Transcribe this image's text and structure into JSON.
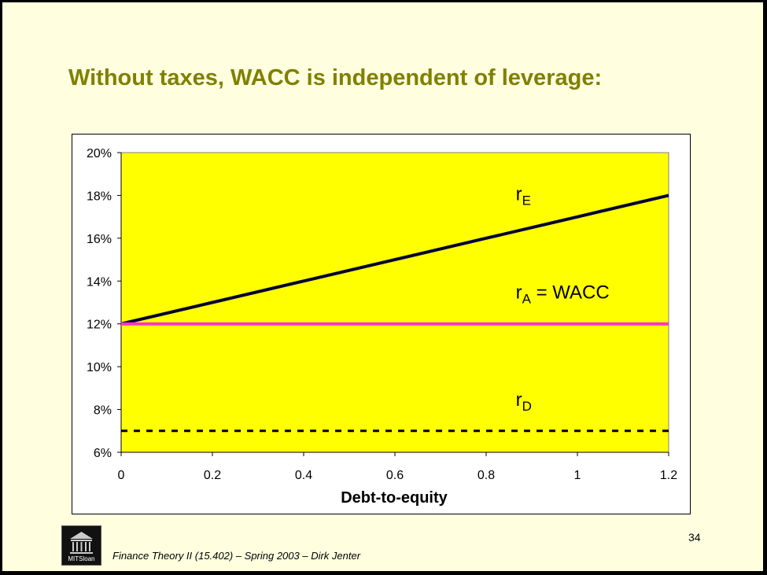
{
  "slide": {
    "title": "Without taxes, WACC is independent of leverage:",
    "page_number": "34",
    "footer": "Finance Theory II (15.402) – Spring 2003 – Dirk Jenter",
    "logo_text": "MITSloan"
  },
  "chart_data": {
    "type": "line",
    "title": "",
    "xlabel": "Debt-to-equity",
    "ylabel": "",
    "xlim": [
      0,
      1.2
    ],
    "ylim": [
      0.06,
      0.2
    ],
    "x_ticks": [
      "0",
      "0.2",
      "0.4",
      "0.6",
      "0.8",
      "1",
      "1.2"
    ],
    "y_ticks": [
      "6%",
      "8%",
      "10%",
      "12%",
      "14%",
      "16%",
      "18%",
      "20%"
    ],
    "x": [
      0,
      0.2,
      0.4,
      0.6,
      0.8,
      1.0,
      1.2
    ],
    "plot_background": "#ffff00",
    "series": [
      {
        "name": "rE",
        "label_main": "r",
        "label_sub": "E",
        "label_suffix": "",
        "values": [
          0.12,
          0.13,
          0.14,
          0.15,
          0.16,
          0.17,
          0.18
        ],
        "color": "#000033",
        "style": "solid"
      },
      {
        "name": "rA = WACC",
        "label_main": "r",
        "label_sub": "A",
        "label_suffix": " = WACC",
        "values": [
          0.12,
          0.12,
          0.12,
          0.12,
          0.12,
          0.12,
          0.12
        ],
        "color": "#ff33cc",
        "style": "solid"
      },
      {
        "name": "rD",
        "label_main": "r",
        "label_sub": "D",
        "label_suffix": "",
        "values": [
          0.07,
          0.07,
          0.07,
          0.07,
          0.07,
          0.07,
          0.07
        ],
        "color": "#000000",
        "style": "dashed"
      }
    ]
  }
}
